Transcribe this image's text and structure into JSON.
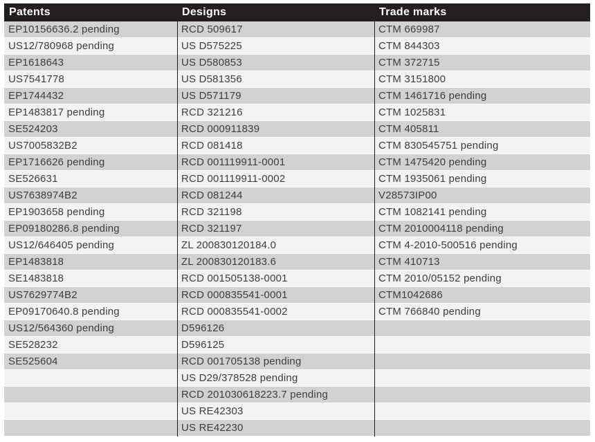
{
  "table": {
    "row_count": 25,
    "colors": {
      "header_bg": "#231f20",
      "header_text": "#ffffff",
      "row_odd": "#d2d2d2",
      "row_even": "#f3f3f2",
      "body_text": "#3d3d3d",
      "column_divider": "#1a1a1a"
    },
    "columns": [
      {
        "id": "patents",
        "header": "Patents",
        "entries": [
          "EP10156636.2 pending",
          "US12/780968 pending",
          "EP1618643",
          "US7541778",
          "EP1744432",
          "EP1483817 pending",
          "SE524203",
          "US7005832B2",
          "EP1716626 pending",
          "SE526631",
          "US7638974B2",
          "EP1903658 pending",
          "EP09180286.8 pending",
          "US12/646405 pending",
          "EP1483818",
          "SE1483818",
          "US7629774B2",
          "EP09170640.8 pending",
          "US12/564360 pending",
          "SE528232",
          "SE525604"
        ]
      },
      {
        "id": "designs",
        "header": "Designs",
        "entries": [
          "RCD 509617",
          "US D575225",
          "US D580853",
          "US D581356",
          "US D571179",
          "RCD 321216",
          "RCD 000911839",
          "RCD 081418",
          "RCD 001119911-0001",
          "RCD 001119911-0002",
          "RCD 081244",
          "RCD 321198",
          "RCD 321197",
          "ZL 200830120184.0",
          "ZL 200830120183.6",
          "RCD 001505138-0001",
          "RCD 000835541-0001",
          "RCD 000835541-0002",
          "D596126",
          "D596125",
          "RCD 001705138 pending",
          "US D29/378528 pending",
          "RCD 201030618223.7 pending",
          "US RE42303",
          "US RE42230"
        ]
      },
      {
        "id": "trade-marks",
        "header": "Trade marks",
        "entries": [
          "CTM 669987",
          "CTM 844303",
          "CTM 372715",
          "CTM 3151800",
          "CTM 1461716 pending",
          "CTM 1025831",
          "CTM 405811",
          "CTM 830545751 pending",
          "CTM 1475420 pending",
          "CTM 1935061 pending",
          "V28573IP00",
          "CTM 1082141 pending",
          "CTM 2010004118 pending",
          "CTM 4-2010-500516 pending",
          "CTM 410713",
          "CTM 2010/05152 pending",
          "CTM1042686",
          "CTM 766840 pending"
        ]
      }
    ]
  }
}
